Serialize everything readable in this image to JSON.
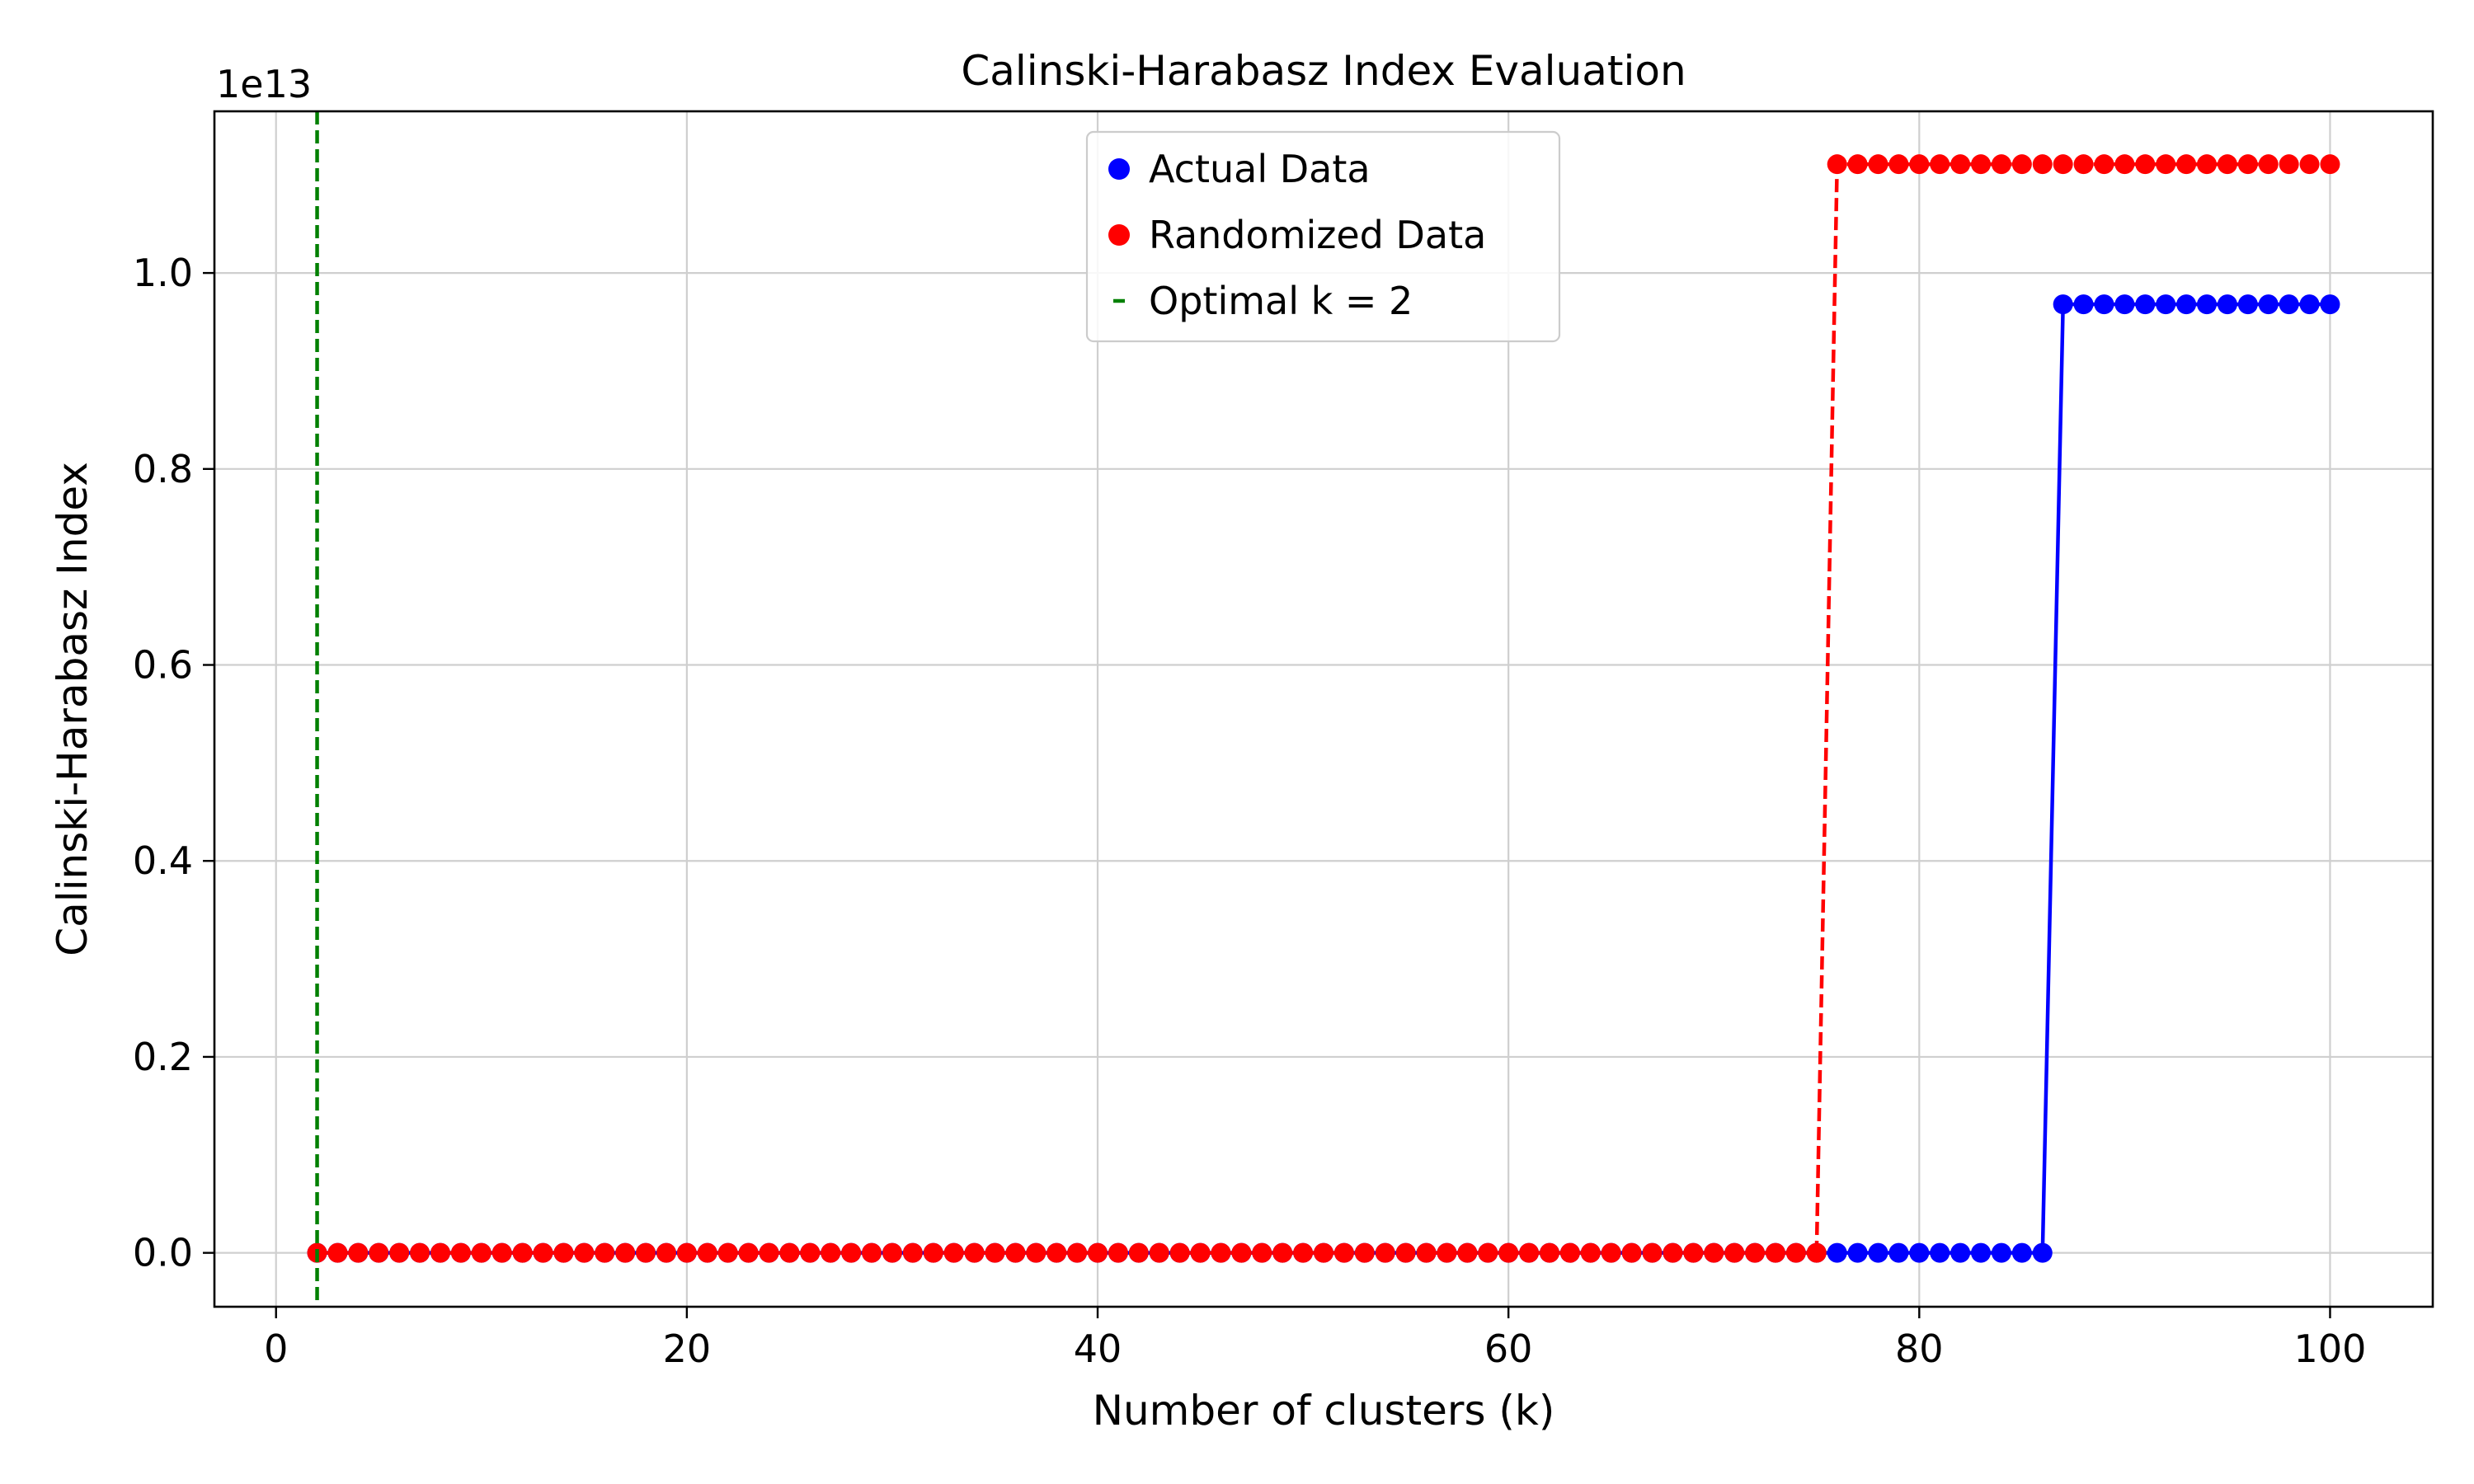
{
  "chart_data": {
    "type": "line",
    "title": "Calinski-Harabasz Index Evaluation",
    "xlabel": "Number of clusters (k)",
    "ylabel": "Calinski-Harabasz Index",
    "y_offset_text": "1e13",
    "xlim": [
      -3,
      105
    ],
    "ylim": [
      -0.055,
      1.165
    ],
    "y_multiplier": 10000000000000.0,
    "x_ticks": [
      0,
      20,
      40,
      60,
      80,
      100
    ],
    "x_tick_labels": [
      "0",
      "20",
      "40",
      "60",
      "80",
      "100"
    ],
    "y_ticks": [
      0.0,
      0.2,
      0.4,
      0.6,
      0.8,
      1.0
    ],
    "y_tick_labels": [
      "0.0",
      "0.2",
      "0.4",
      "0.6",
      "0.8",
      "1.0"
    ],
    "grid": true,
    "legend_position": "upper-center",
    "series": [
      {
        "name": "Actual Data",
        "color": "#0000ff",
        "line_style": "solid",
        "marker": "circle",
        "segments": [
          {
            "x_start": 2,
            "x_end": 86,
            "y": 0.0
          },
          {
            "x_start": 87,
            "x_end": 100,
            "y": 0.968
          }
        ]
      },
      {
        "name": "Randomized Data",
        "color": "#ff0000",
        "line_style": "dashed",
        "marker": "circle",
        "segments": [
          {
            "x_start": 2,
            "x_end": 75,
            "y": 0.0
          },
          {
            "x_start": 76,
            "x_end": 100,
            "y": 1.111
          }
        ]
      }
    ],
    "vline": {
      "name": "Optimal k = 2",
      "x": 2,
      "color": "#008000",
      "line_style": "dashed"
    }
  }
}
